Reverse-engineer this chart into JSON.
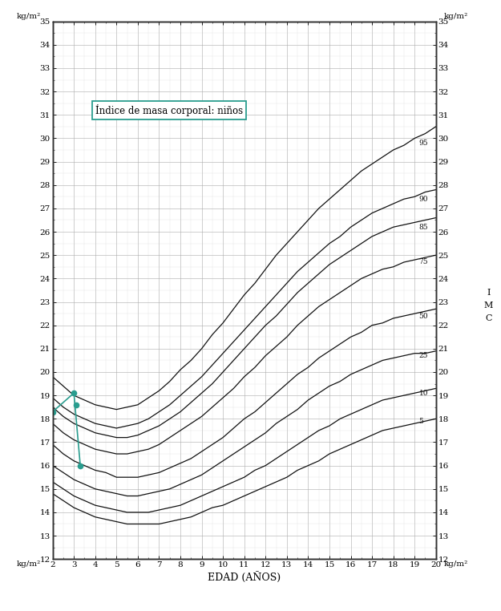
{
  "title": "Índice de masa corporal: niños",
  "xlabel": "EDAD (AÑOS)",
  "xlim": [
    2,
    20
  ],
  "ylim": [
    12,
    35
  ],
  "xticks": [
    2,
    3,
    4,
    5,
    6,
    7,
    8,
    9,
    10,
    11,
    12,
    13,
    14,
    15,
    16,
    17,
    18,
    19,
    20
  ],
  "yticks": [
    12,
    13,
    14,
    15,
    16,
    17,
    18,
    19,
    20,
    21,
    22,
    23,
    24,
    25,
    26,
    27,
    28,
    29,
    30,
    31,
    32,
    33,
    34,
    35
  ],
  "percentile_labels": [
    "95",
    "90",
    "85",
    "75",
    "50",
    "25",
    "10",
    "5"
  ],
  "bg_color": "#ffffff",
  "grid_major_color": "#aaaaaa",
  "grid_minor_color": "#cccccc",
  "curve_color": "#111111",
  "point_color": "#2a9d8f",
  "box_edge_color": "#2a9d8f",
  "patient_points": [
    [
      2.0,
      18.3
    ],
    [
      3.0,
      19.1
    ],
    [
      3.1,
      18.6
    ],
    [
      3.3,
      16.0
    ]
  ],
  "patient_lines": [
    [
      [
        2.0,
        18.3
      ],
      [
        3.0,
        19.1
      ]
    ],
    [
      [
        3.0,
        19.1
      ],
      [
        3.3,
        16.0
      ]
    ]
  ]
}
